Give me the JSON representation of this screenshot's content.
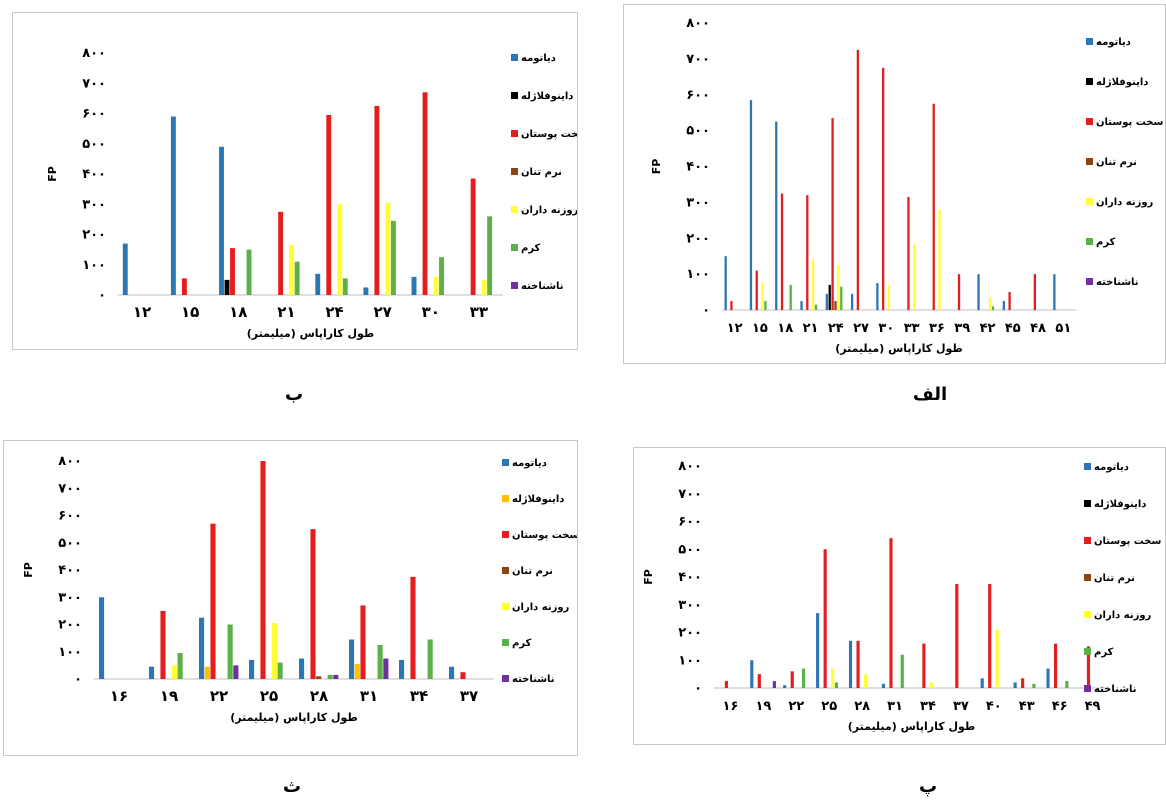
{
  "colors": {
    "diatom": "#2E75B6",
    "dino": "#000000",
    "dino_d": "#FFC000",
    "crust": "#E41E1E",
    "mollusc": "#8B4513",
    "foram": "#FFFF33",
    "worm": "#5BB04A",
    "unknown": "#7030A0"
  },
  "chart_data": [
    {
      "id": "b",
      "panel_label": "ب",
      "type": "bar",
      "ylabel": "FP",
      "xlabel": "طول کاراپاس (میلیمتر)",
      "ylim": [
        0,
        800
      ],
      "yticks": [
        "۰",
        "۱۰۰",
        "۲۰۰",
        "۳۰۰",
        "۴۰۰",
        "۵۰۰",
        "۶۰۰",
        "۷۰۰",
        "۸۰۰"
      ],
      "categories": [
        "۱۲",
        "۱۵",
        "۱۸",
        "۲۱",
        "۲۴",
        "۲۷",
        "۳۰",
        "۳۳"
      ],
      "series": [
        {
          "name": "دیاتومه",
          "color_key": "diatom",
          "values": [
            170,
            590,
            490,
            0,
            70,
            25,
            60,
            0
          ]
        },
        {
          "name": "داینوفلاژله",
          "color_key": "dino",
          "values": [
            0,
            0,
            50,
            0,
            0,
            0,
            0,
            0
          ]
        },
        {
          "name": "سخت پوستان",
          "color_key": "crust",
          "values": [
            0,
            55,
            155,
            275,
            595,
            625,
            670,
            385
          ]
        },
        {
          "name": "نرم تنان",
          "color_key": "mollusc",
          "values": [
            0,
            0,
            0,
            0,
            0,
            0,
            0,
            0
          ]
        },
        {
          "name": "روزنه داران",
          "color_key": "foram",
          "values": [
            0,
            0,
            0,
            165,
            300,
            305,
            60,
            50
          ]
        },
        {
          "name": "کرم",
          "color_key": "worm",
          "values": [
            0,
            0,
            150,
            110,
            55,
            245,
            125,
            260
          ]
        },
        {
          "name": "ناشناخته",
          "color_key": "unknown",
          "values": [
            0,
            0,
            0,
            0,
            0,
            0,
            0,
            0
          ]
        }
      ]
    },
    {
      "id": "alef",
      "panel_label": "الف",
      "type": "bar",
      "ylabel": "FP",
      "xlabel": "طول کاراپاس (میلیمتر)",
      "ylim": [
        0,
        800
      ],
      "yticks": [
        "۰",
        "۱۰۰",
        "۲۰۰",
        "۳۰۰",
        "۴۰۰",
        "۵۰۰",
        "۶۰۰",
        "۷۰۰",
        "۸۰۰"
      ],
      "categories": [
        "۱۲",
        "۱۵",
        "۱۸",
        "۲۱",
        "۲۴",
        "۲۷",
        "۳۰",
        "۳۳",
        "۳۶",
        "۳۹",
        "۴۲",
        "۴۵",
        "۴۸",
        "۵۱"
      ],
      "series": [
        {
          "name": "دیاتومه",
          "color_key": "diatom",
          "values": [
            150,
            585,
            525,
            25,
            45,
            45,
            75,
            0,
            0,
            0,
            100,
            25,
            0,
            100
          ]
        },
        {
          "name": "داینوفلاژله",
          "color_key": "dino",
          "values": [
            0,
            0,
            0,
            0,
            70,
            0,
            0,
            0,
            0,
            0,
            0,
            0,
            0,
            0
          ]
        },
        {
          "name": "سخت پوستان",
          "color_key": "crust",
          "values": [
            25,
            110,
            325,
            320,
            535,
            725,
            675,
            315,
            575,
            100,
            0,
            50,
            100,
            0
          ]
        },
        {
          "name": "نرم تنان",
          "color_key": "mollusc",
          "values": [
            0,
            0,
            0,
            0,
            25,
            0,
            0,
            0,
            0,
            0,
            0,
            0,
            0,
            0
          ]
        },
        {
          "name": "روزنه داران",
          "color_key": "foram",
          "values": [
            0,
            75,
            0,
            140,
            125,
            0,
            70,
            185,
            280,
            0,
            35,
            0,
            0,
            0
          ]
        },
        {
          "name": "کرم",
          "color_key": "worm",
          "values": [
            0,
            25,
            70,
            15,
            65,
            0,
            0,
            0,
            0,
            0,
            10,
            0,
            0,
            0
          ]
        },
        {
          "name": "ناشناخته",
          "color_key": "unknown",
          "values": [
            0,
            0,
            0,
            0,
            0,
            0,
            0,
            0,
            0,
            0,
            0,
            0,
            0,
            0
          ]
        }
      ]
    },
    {
      "id": "se",
      "panel_label": "ث",
      "type": "bar",
      "ylabel": "FP",
      "xlabel": "طول کاراپاس (میلیمتر)",
      "ylim": [
        0,
        800
      ],
      "yticks": [
        "۰",
        "۱۰۰",
        "۲۰۰",
        "۳۰۰",
        "۴۰۰",
        "۵۰۰",
        "۶۰۰",
        "۷۰۰",
        "۸۰۰"
      ],
      "categories": [
        "۱۶",
        "۱۹",
        "۲۲",
        "۲۵",
        "۲۸",
        "۳۱",
        "۳۴",
        "۳۷"
      ],
      "series": [
        {
          "name": "دیاتومه",
          "color_key": "diatom",
          "values": [
            300,
            45,
            225,
            70,
            75,
            145,
            70,
            45
          ]
        },
        {
          "name": "داینوفلاژله",
          "color_key": "dino_d",
          "values": [
            0,
            0,
            45,
            0,
            0,
            55,
            0,
            0
          ]
        },
        {
          "name": "سخت پوستان",
          "color_key": "crust",
          "values": [
            0,
            250,
            570,
            800,
            550,
            270,
            375,
            25
          ]
        },
        {
          "name": "نرم تنان",
          "color_key": "mollusc",
          "values": [
            0,
            0,
            0,
            0,
            10,
            0,
            0,
            0
          ]
        },
        {
          "name": "روزنه داران",
          "color_key": "foram",
          "values": [
            0,
            50,
            0,
            205,
            0,
            0,
            0,
            0
          ]
        },
        {
          "name": "کرم",
          "color_key": "worm",
          "values": [
            0,
            95,
            200,
            60,
            15,
            125,
            145,
            0
          ]
        },
        {
          "name": "ناشناخته",
          "color_key": "unknown",
          "values": [
            0,
            0,
            50,
            0,
            15,
            75,
            0,
            0
          ]
        }
      ]
    },
    {
      "id": "pe",
      "panel_label": "پ",
      "type": "bar",
      "ylabel": "FP",
      "xlabel": "طول کاراپاس (میلیمتر)",
      "ylim": [
        0,
        800
      ],
      "yticks": [
        "۰",
        "۱۰۰",
        "۲۰۰",
        "۳۰۰",
        "۴۰۰",
        "۵۰۰",
        "۶۰۰",
        "۷۰۰",
        "۸۰۰"
      ],
      "categories": [
        "۱۶",
        "۱۹",
        "۲۲",
        "۲۵",
        "۲۸",
        "۳۱",
        "۳۴",
        "۳۷",
        "۴۰",
        "۴۳",
        "۴۶",
        "۴۹"
      ],
      "series": [
        {
          "name": "دیاتومه",
          "color_key": "diatom",
          "values": [
            0,
            100,
            10,
            270,
            170,
            15,
            0,
            0,
            35,
            20,
            70,
            0
          ]
        },
        {
          "name": "داینوفلاژله",
          "color_key": "dino",
          "values": [
            0,
            0,
            0,
            0,
            0,
            0,
            0,
            0,
            0,
            0,
            0,
            0
          ]
        },
        {
          "name": "سخت پوستان",
          "color_key": "crust",
          "values": [
            25,
            50,
            60,
            500,
            170,
            540,
            160,
            375,
            375,
            35,
            160,
            150
          ]
        },
        {
          "name": "نرم تنان",
          "color_key": "mollusc",
          "values": [
            0,
            0,
            0,
            0,
            0,
            0,
            0,
            0,
            0,
            0,
            0,
            0
          ]
        },
        {
          "name": "روزنه داران",
          "color_key": "foram",
          "values": [
            0,
            0,
            0,
            70,
            50,
            0,
            20,
            0,
            210,
            0,
            0,
            0
          ]
        },
        {
          "name": "کرم",
          "color_key": "worm",
          "values": [
            0,
            0,
            70,
            20,
            0,
            120,
            0,
            0,
            0,
            15,
            25,
            0
          ]
        },
        {
          "name": "ناشناخته",
          "color_key": "unknown",
          "values": [
            0,
            25,
            0,
            0,
            0,
            0,
            0,
            0,
            0,
            0,
            0,
            0
          ]
        }
      ]
    }
  ]
}
